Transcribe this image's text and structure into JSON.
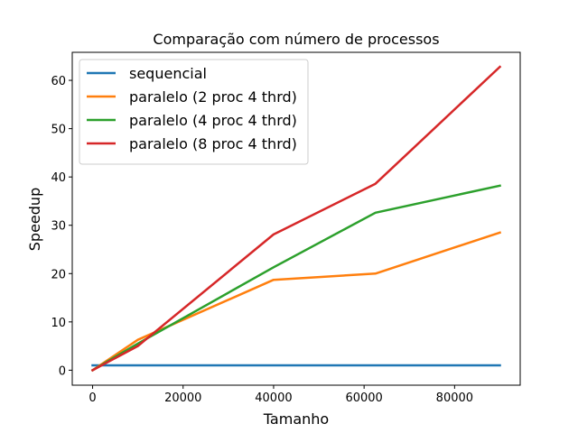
{
  "chart_data": {
    "type": "line",
    "title": "Comparação com número de processos",
    "xlabel": "Tamanho",
    "ylabel": "Speedup",
    "xlim": [
      -4500,
      94500
    ],
    "ylim": [
      -3.1,
      65.8
    ],
    "xticks": [
      0,
      20000,
      40000,
      60000,
      80000
    ],
    "xtick_labels": [
      "0",
      "20000",
      "40000",
      "60000",
      "80000"
    ],
    "yticks": [
      0,
      10,
      20,
      30,
      40,
      50,
      60
    ],
    "ytick_labels": [
      "0",
      "10",
      "20",
      "30",
      "40",
      "50",
      "60"
    ],
    "grid": false,
    "legend_position": "top-left",
    "series": [
      {
        "name": "sequencial",
        "color": "#1f77b4",
        "x": [
          0,
          10000,
          40000,
          62500,
          90000
        ],
        "y": [
          1,
          1,
          1,
          1,
          1
        ]
      },
      {
        "name": "paralelo (2 proc 4 thrd)",
        "color": "#ff7f0e",
        "x": [
          0,
          10000,
          40000,
          62500,
          90000
        ],
        "y": [
          0,
          6.3,
          18.7,
          20.0,
          28.5
        ]
      },
      {
        "name": "paralelo (4 proc 4 thrd)",
        "color": "#2ca02c",
        "x": [
          0,
          10000,
          40000,
          62500,
          90000
        ],
        "y": [
          0,
          5.5,
          21.3,
          32.6,
          38.2
        ]
      },
      {
        "name": "paralelo (8 proc 4 thrd)",
        "color": "#d62728",
        "x": [
          0,
          10000,
          40000,
          62500,
          90000
        ],
        "y": [
          0,
          5.0,
          28.1,
          38.6,
          62.8
        ]
      }
    ]
  }
}
